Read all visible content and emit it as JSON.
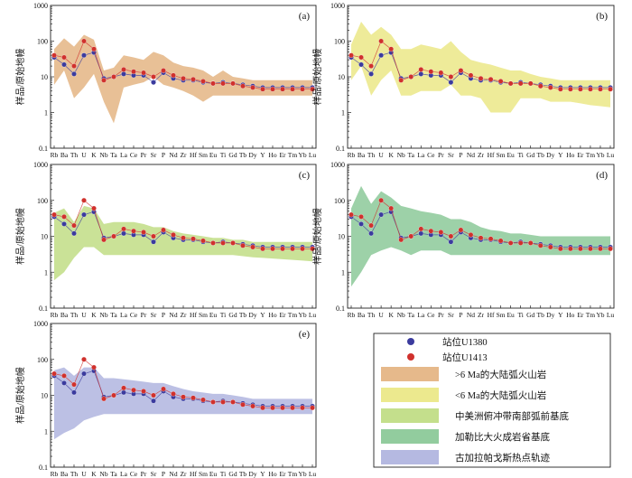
{
  "chart_data": {
    "type": "line",
    "title": "",
    "xlabel": "",
    "ylabel": "样品/原始地幔",
    "yscale": "log",
    "ylim": [
      0.1,
      1000
    ],
    "y_ticks": [
      "0.1",
      "1",
      "10",
      "100",
      "1000"
    ],
    "elements": [
      "Rb",
      "Ba",
      "Th",
      "U",
      "K",
      "Nb",
      "Ta",
      "La",
      "Ce",
      "Pr",
      "Sr",
      "P",
      "Nd",
      "Zr",
      "Hf",
      "Sm",
      "Eu",
      "Ti",
      "Gd",
      "Tb",
      "Dy",
      "Y",
      "Ho",
      "Er",
      "Tm",
      "Yb",
      "Lu"
    ],
    "series": [
      {
        "name": "站位U1380",
        "color": "#3b3b9e",
        "values": [
          35,
          22,
          12,
          40,
          48,
          9,
          10,
          12,
          11,
          11,
          7,
          13,
          9,
          8,
          8,
          7,
          6.5,
          7,
          6.5,
          6,
          5.5,
          5,
          5,
          5,
          5,
          5,
          5
        ]
      },
      {
        "name": "站位U1413",
        "color": "#d0312d",
        "values": [
          40,
          35,
          20,
          100,
          60,
          8,
          10,
          16,
          14,
          13,
          10,
          15,
          11,
          9,
          8.5,
          7.5,
          6.5,
          6.5,
          6.5,
          5.5,
          5,
          4.5,
          4.5,
          4.5,
          4.5,
          4.5,
          4.5
        ]
      }
    ],
    "envelopes": [
      {
        "name": ">6 Ma的大陆弧火山岩",
        "color": "#e6b98b",
        "max": [
          60,
          120,
          70,
          150,
          110,
          15,
          18,
          40,
          35,
          30,
          50,
          40,
          25,
          20,
          18,
          15,
          10,
          15,
          10,
          9,
          8,
          8,
          8,
          8,
          8,
          8,
          8
        ],
        "min": [
          6,
          15,
          2.5,
          5,
          12,
          2,
          0.5,
          5,
          6,
          7,
          10,
          6,
          5,
          4,
          3,
          2,
          3,
          3,
          3,
          3,
          3,
          3,
          3,
          3,
          3,
          3,
          3
        ]
      },
      {
        "name": "<6 Ma的大陆弧火山岩",
        "color": "#ece98e",
        "max": [
          80,
          350,
          150,
          250,
          150,
          60,
          60,
          80,
          70,
          60,
          100,
          50,
          30,
          25,
          22,
          18,
          15,
          15,
          12,
          10,
          9,
          8,
          8,
          8,
          8,
          8,
          8
        ],
        "min": [
          8,
          20,
          3,
          8,
          15,
          3,
          3,
          4,
          4,
          4,
          6,
          3,
          3,
          2.5,
          1,
          1,
          1,
          2.5,
          2.5,
          2.5,
          2,
          2,
          2,
          1.8,
          1.6,
          1.5,
          1.4
        ]
      },
      {
        "name": "中美洲俯冲带南部弧前基底",
        "color": "#c4df8c",
        "max": [
          45,
          60,
          25,
          70,
          60,
          22,
          25,
          25,
          25,
          22,
          18,
          18,
          14,
          12,
          11,
          10,
          9,
          9,
          8,
          8,
          7,
          7,
          7,
          7,
          7,
          7,
          7
        ],
        "min": [
          0.6,
          1,
          2.5,
          5,
          5,
          3,
          3,
          3,
          3,
          3,
          3,
          3,
          3,
          3,
          3,
          3,
          3,
          3,
          3,
          2.8,
          2.6,
          2.5,
          2.4,
          2.3,
          2.2,
          2.1,
          2
        ]
      },
      {
        "name": "加勒比大火成岩省基底",
        "color": "#92cc9e",
        "max": [
          60,
          250,
          80,
          180,
          120,
          70,
          60,
          50,
          45,
          40,
          30,
          30,
          25,
          18,
          15,
          14,
          12,
          12,
          11,
          10,
          10,
          10,
          10,
          10,
          10,
          10,
          10
        ],
        "min": [
          0.4,
          1,
          3,
          4,
          5,
          4,
          3,
          4,
          4,
          4,
          3,
          3,
          3,
          3,
          3,
          3,
          3,
          3,
          3,
          3,
          3,
          3,
          3,
          3,
          3,
          3,
          3
        ]
      },
      {
        "name": "古加拉帕戈斯热点轨迹",
        "color": "#b5b9e1",
        "max": [
          50,
          60,
          35,
          60,
          60,
          30,
          30,
          28,
          26,
          24,
          22,
          22,
          18,
          15,
          13,
          12,
          11,
          11,
          10,
          9,
          8,
          8,
          8,
          8,
          8,
          8,
          8
        ],
        "min": [
          0.6,
          0.9,
          1.2,
          2,
          2.5,
          3,
          3,
          3,
          3,
          3,
          3,
          3,
          3,
          3,
          3,
          3,
          3,
          3,
          3,
          3,
          3,
          3,
          3,
          3,
          3,
          3,
          3
        ]
      }
    ],
    "panels": [
      {
        "label": "(a)",
        "envelope": 0
      },
      {
        "label": "(b)",
        "envelope": 1
      },
      {
        "label": "(c)",
        "envelope": 2
      },
      {
        "label": "(d)",
        "envelope": 3
      },
      {
        "label": "(e)",
        "envelope": 4
      }
    ],
    "legend_position": "bottom-right"
  }
}
